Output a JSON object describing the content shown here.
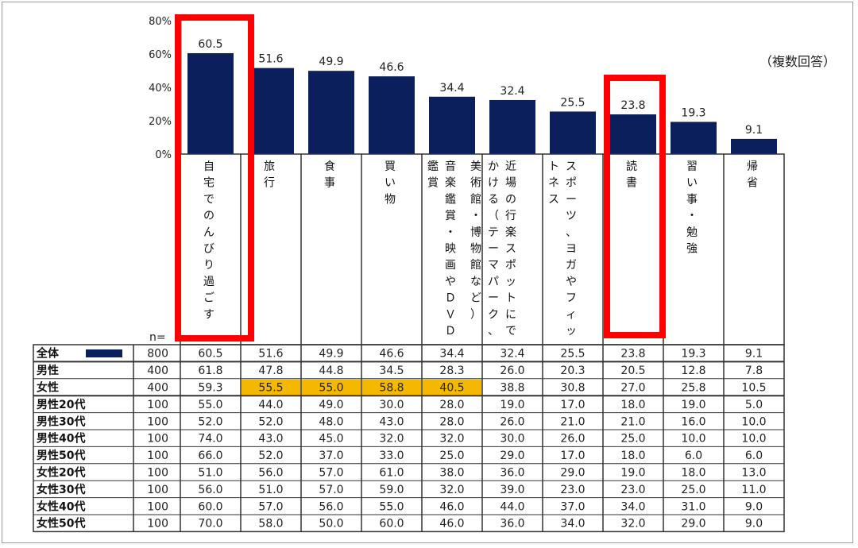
{
  "note": "（複数回答）",
  "n_label": "n=",
  "chart_data": {
    "type": "bar",
    "ylim": [
      0,
      80
    ],
    "yticks": [
      "0%",
      "20%",
      "40%",
      "60%",
      "80%"
    ],
    "categories": [
      "自宅でのんびり過ごす",
      "旅行",
      "食事",
      "買い物",
      "音楽鑑賞・映画やＤＶＤ鑑賞",
      "近場の行楽スポットにでかける（テーマパーク、美術館・博物館など）",
      "スポーツ、ヨガやフィットネス",
      "読書",
      "習い事・勉強",
      "帰省"
    ],
    "category_columns": [
      [
        "自宅でのんびり過ごす"
      ],
      [
        "旅行"
      ],
      [
        "食事"
      ],
      [
        "買い物"
      ],
      [
        "音楽鑑賞・映画やＤＶＤ",
        "鑑賞"
      ],
      [
        "近場の行楽スポットにで",
        "かける（テーマパーク、",
        "美術館・博物館など）"
      ],
      [
        "スポーツ、ヨガやフィッ",
        "トネス"
      ],
      [
        "読書"
      ],
      [
        "習い事・勉強"
      ],
      [
        "帰省"
      ]
    ],
    "values": [
      60.5,
      51.6,
      49.9,
      46.6,
      34.4,
      32.4,
      25.5,
      23.8,
      19.3,
      9.1
    ],
    "value_labels": [
      "60.5",
      "51.6",
      "49.9",
      "46.6",
      "34.4",
      "32.4",
      "25.5",
      "23.8",
      "19.3",
      "9.1"
    ],
    "highlight_boxes": [
      0,
      7
    ],
    "highlight_color": "#ff0000",
    "bar_color": "#0a1f5c",
    "table": {
      "rows": [
        {
          "label": "全体",
          "legend_swatch": true,
          "n": "800",
          "values": [
            "60.5",
            "51.6",
            "49.9",
            "46.6",
            "34.4",
            "32.4",
            "25.5",
            "23.8",
            "19.3",
            "9.1"
          ]
        },
        {
          "label": "男性",
          "n": "400",
          "values": [
            "61.8",
            "47.8",
            "44.8",
            "34.5",
            "28.3",
            "26.0",
            "20.3",
            "20.5",
            "12.8",
            "7.8"
          ]
        },
        {
          "label": "女性",
          "n": "400",
          "values": [
            "59.3",
            "55.5",
            "55.0",
            "58.8",
            "40.5",
            "38.8",
            "30.8",
            "27.0",
            "25.8",
            "10.5"
          ],
          "highlight_cells": [
            1,
            2,
            3,
            4
          ]
        },
        {
          "label": "男性20代",
          "n": "100",
          "values": [
            "55.0",
            "44.0",
            "49.0",
            "30.0",
            "28.0",
            "19.0",
            "17.0",
            "18.0",
            "19.0",
            "5.0"
          ]
        },
        {
          "label": "男性30代",
          "n": "100",
          "values": [
            "52.0",
            "52.0",
            "48.0",
            "43.0",
            "28.0",
            "26.0",
            "21.0",
            "21.0",
            "16.0",
            "10.0"
          ]
        },
        {
          "label": "男性40代",
          "n": "100",
          "values": [
            "74.0",
            "43.0",
            "45.0",
            "32.0",
            "32.0",
            "30.0",
            "26.0",
            "25.0",
            "10.0",
            "10.0"
          ]
        },
        {
          "label": "男性50代",
          "n": "100",
          "values": [
            "66.0",
            "52.0",
            "37.0",
            "33.0",
            "25.0",
            "29.0",
            "17.0",
            "18.0",
            "6.0",
            "6.0"
          ]
        },
        {
          "label": "女性20代",
          "n": "100",
          "values": [
            "51.0",
            "56.0",
            "57.0",
            "61.0",
            "38.0",
            "36.0",
            "29.0",
            "19.0",
            "18.0",
            "13.0"
          ]
        },
        {
          "label": "女性30代",
          "n": "100",
          "values": [
            "56.0",
            "51.0",
            "57.0",
            "59.0",
            "32.0",
            "39.0",
            "23.0",
            "23.0",
            "25.0",
            "11.0"
          ]
        },
        {
          "label": "女性40代",
          "n": "100",
          "values": [
            "60.0",
            "57.0",
            "56.0",
            "55.0",
            "46.0",
            "44.0",
            "37.0",
            "34.0",
            "31.0",
            "9.0"
          ]
        },
        {
          "label": "女性50代",
          "n": "100",
          "values": [
            "70.0",
            "58.0",
            "50.0",
            "60.0",
            "46.0",
            "36.0",
            "34.0",
            "32.0",
            "29.0",
            "9.0"
          ]
        }
      ],
      "cell_highlight_color": "#f5b800"
    }
  }
}
